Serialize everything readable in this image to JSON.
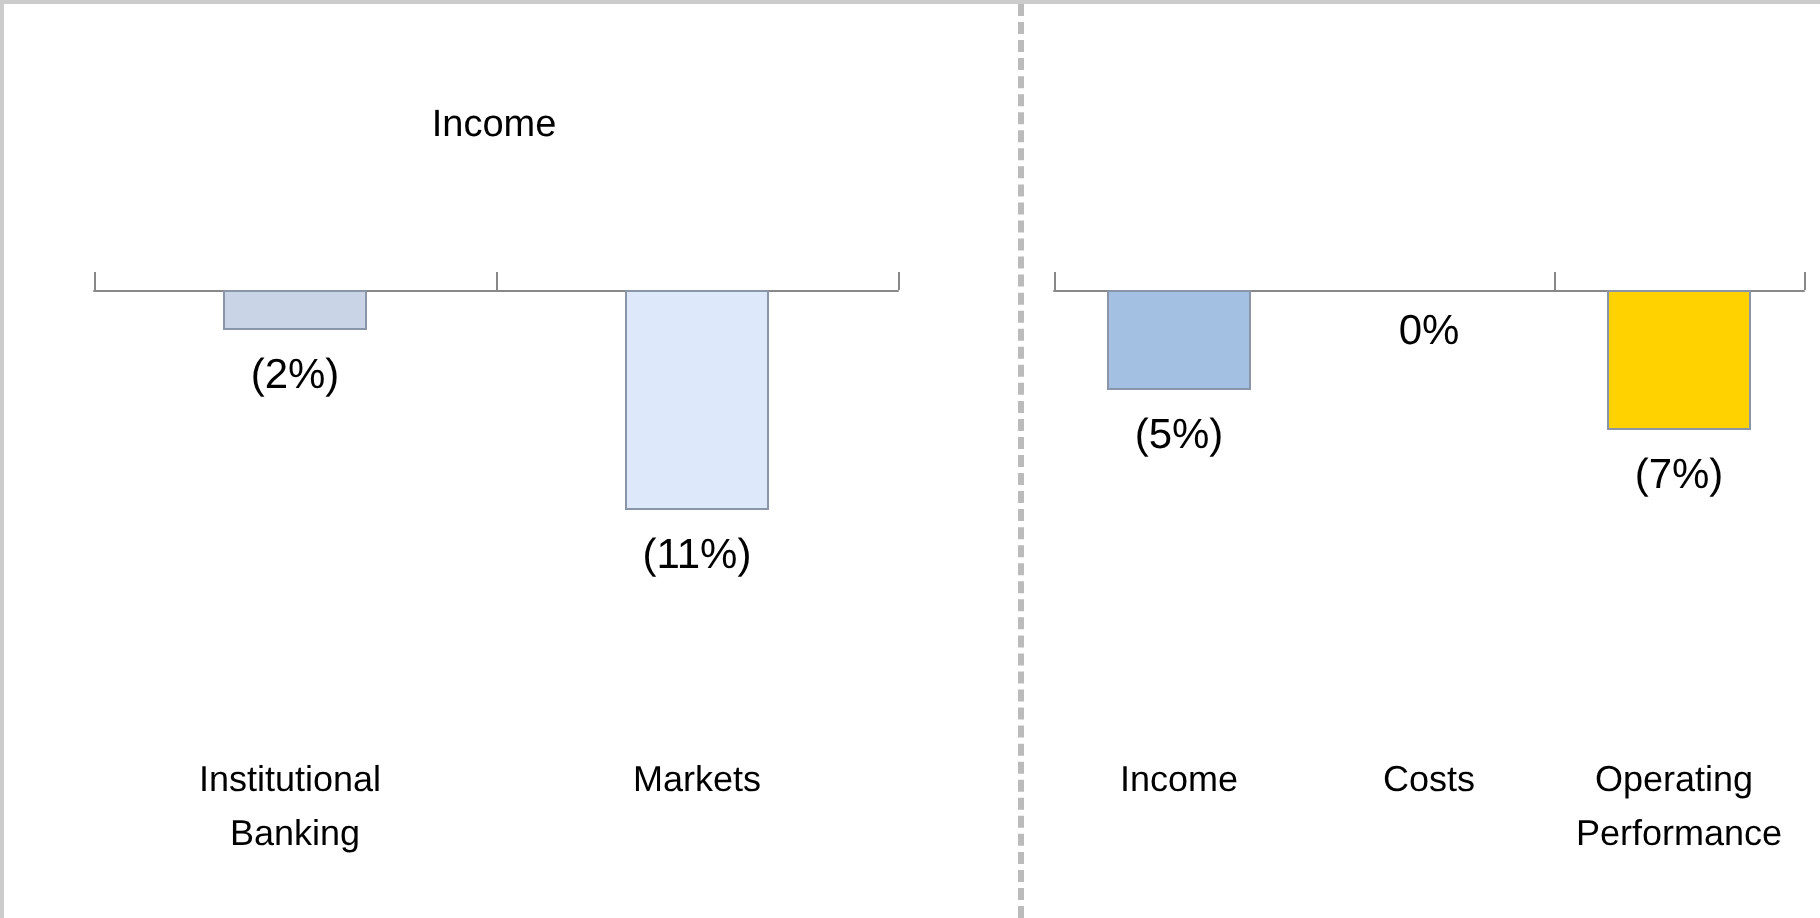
{
  "chart_data": [
    {
      "type": "bar",
      "title": "Income",
      "categories": [
        "Institutional Banking",
        "Markets"
      ],
      "values": [
        -2,
        -11
      ],
      "colors": [
        "#c9d5e6",
        "#dde9fa"
      ],
      "value_labels": [
        "(2%)",
        "(11%)"
      ]
    },
    {
      "type": "bar",
      "categories": [
        "Income",
        "Costs",
        "Operating Performance"
      ],
      "values": [
        -5,
        0,
        -7
      ],
      "colors": [
        "#a3c0e2",
        "#c0c0c0",
        "#ffd200"
      ],
      "value_labels": [
        "(5%)",
        "0%",
        "(7%)"
      ]
    }
  ]
}
